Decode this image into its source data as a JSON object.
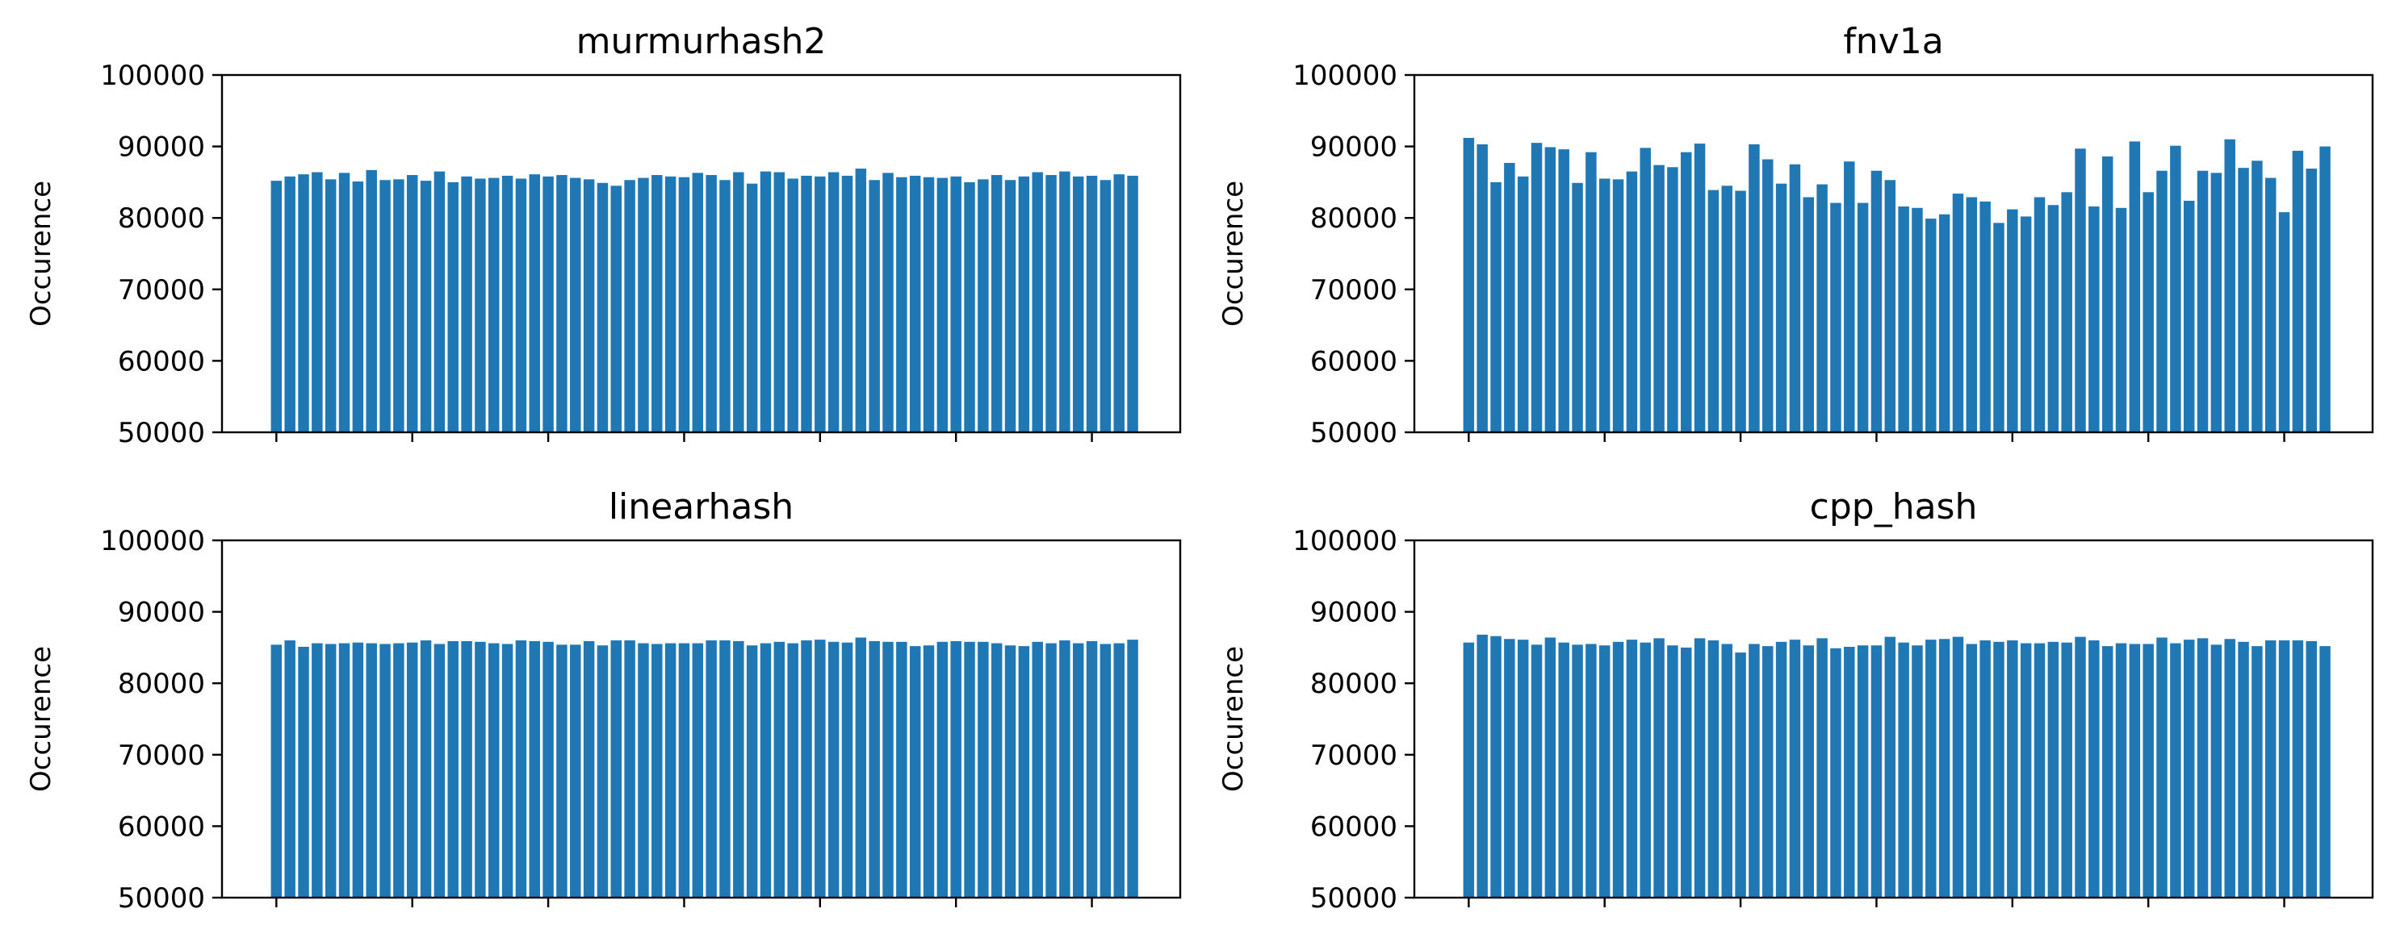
{
  "colors": {
    "bar": "#1f77b4",
    "axis": "#000000",
    "background": "#ffffff"
  },
  "chart_data": [
    {
      "type": "bar",
      "title": "murmurhash2",
      "xlabel": "",
      "ylabel": "Occurence",
      "ylim": [
        50000,
        100000
      ],
      "yticks": [
        "50000",
        "60000",
        "70000",
        "80000",
        "90000",
        "100000"
      ],
      "x_tick_positions": [
        0,
        10,
        20,
        30,
        40,
        50,
        60
      ],
      "x_tick_labels_visible": false,
      "grid": false,
      "values": [
        85200,
        85800,
        86100,
        86400,
        85400,
        86300,
        85100,
        86700,
        85300,
        85400,
        86000,
        85200,
        86500,
        85000,
        85800,
        85500,
        85600,
        85900,
        85500,
        86100,
        85800,
        86000,
        85600,
        85400,
        84900,
        84500,
        85300,
        85600,
        86000,
        85800,
        85700,
        86300,
        86000,
        85300,
        86400,
        84800,
        86500,
        86400,
        85500,
        85900,
        85800,
        86400,
        85900,
        86900,
        85300,
        86300,
        85700,
        85900,
        85700,
        85600,
        85800,
        85000,
        85400,
        86000,
        85300,
        85800,
        86400,
        86000,
        86500,
        85800,
        85900,
        85300,
        86100,
        85900
      ]
    },
    {
      "type": "bar",
      "title": "fnv1a",
      "xlabel": "",
      "ylabel": "Occurence",
      "ylim": [
        50000,
        100000
      ],
      "yticks": [
        "50000",
        "60000",
        "70000",
        "80000",
        "90000",
        "100000"
      ],
      "x_tick_positions": [
        0,
        10,
        20,
        30,
        40,
        50,
        60
      ],
      "x_tick_labels_visible": false,
      "grid": false,
      "values": [
        91200,
        90300,
        85000,
        87700,
        85800,
        90500,
        89900,
        89600,
        84900,
        89200,
        85500,
        85400,
        86500,
        89800,
        87400,
        87100,
        89200,
        90400,
        83900,
        84500,
        83800,
        90300,
        88200,
        84800,
        87500,
        82900,
        84700,
        82100,
        87900,
        82100,
        86600,
        85300,
        81600,
        81400,
        79900,
        80500,
        83400,
        82900,
        82300,
        79300,
        81200,
        80200,
        82900,
        81800,
        83600,
        89700,
        81600,
        88600,
        81400,
        90700,
        83600,
        86600,
        90100,
        82400,
        86600,
        86300,
        91000,
        87000,
        88000,
        85600,
        80800,
        89400,
        86900,
        90000
      ]
    },
    {
      "type": "bar",
      "title": "linearhash",
      "xlabel": "",
      "ylabel": "Occurence",
      "ylim": [
        50000,
        100000
      ],
      "yticks": [
        "50000",
        "60000",
        "70000",
        "80000",
        "90000",
        "100000"
      ],
      "x_tick_positions": [
        0,
        10,
        20,
        30,
        40,
        50,
        60
      ],
      "x_tick_labels_visible": false,
      "grid": false,
      "values": [
        85400,
        86000,
        85100,
        85600,
        85500,
        85600,
        85700,
        85600,
        85500,
        85600,
        85700,
        86000,
        85500,
        85900,
        85900,
        85800,
        85600,
        85500,
        86000,
        85900,
        85800,
        85400,
        85400,
        85900,
        85300,
        86000,
        86000,
        85600,
        85500,
        85600,
        85600,
        85600,
        86000,
        86000,
        85900,
        85300,
        85600,
        85800,
        85600,
        86000,
        86100,
        85800,
        85700,
        86400,
        85900,
        85800,
        85800,
        85200,
        85300,
        85800,
        85900,
        85800,
        85800,
        85600,
        85300,
        85200,
        85800,
        85600,
        86000,
        85600,
        85900,
        85500,
        85600,
        86100
      ]
    },
    {
      "type": "bar",
      "title": "cpp_hash",
      "xlabel": "",
      "ylabel": "Occurence",
      "ylim": [
        50000,
        100000
      ],
      "yticks": [
        "50000",
        "60000",
        "70000",
        "80000",
        "90000",
        "100000"
      ],
      "x_tick_positions": [
        0,
        10,
        20,
        30,
        40,
        50,
        60
      ],
      "x_tick_labels_visible": false,
      "grid": false,
      "values": [
        85700,
        86800,
        86600,
        86200,
        86100,
        85400,
        86400,
        85700,
        85400,
        85500,
        85300,
        85800,
        86100,
        85700,
        86300,
        85300,
        85000,
        86300,
        86000,
        85500,
        84300,
        85500,
        85200,
        85800,
        86100,
        85300,
        86300,
        84900,
        85100,
        85300,
        85300,
        86500,
        85700,
        85300,
        86100,
        86200,
        86500,
        85500,
        86000,
        85800,
        86000,
        85600,
        85600,
        85800,
        85700,
        86500,
        86000,
        85200,
        85600,
        85500,
        85500,
        86400,
        85600,
        86100,
        86300,
        85400,
        86200,
        85800,
        85200,
        86000,
        86000,
        86000,
        85900,
        85200
      ]
    }
  ]
}
